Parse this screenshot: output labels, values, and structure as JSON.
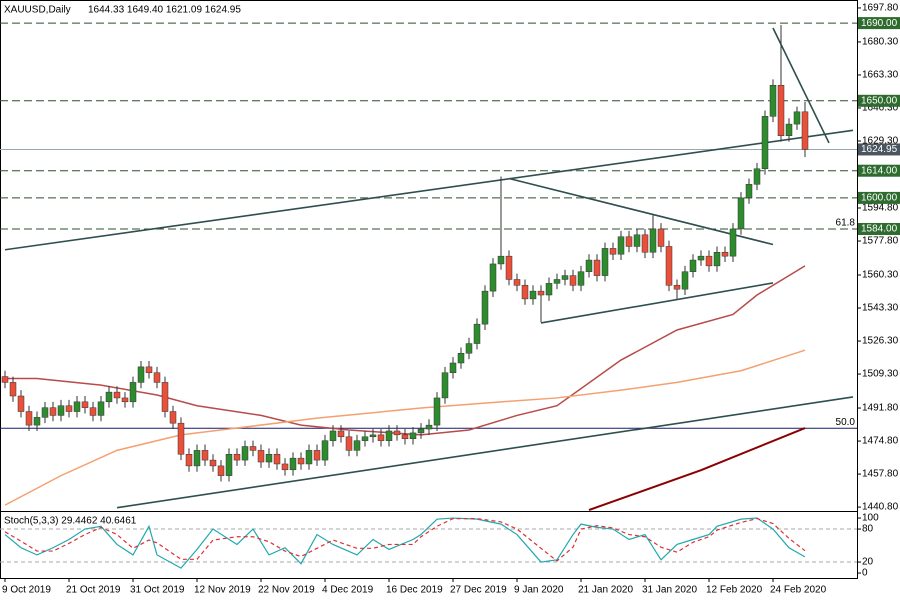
{
  "chart_data": [
    {
      "type": "candlestick",
      "title": "XAUUSD,Daily",
      "quote": "1644.33 1649.40 1621.09 1624.95",
      "up_color": "#2e8b2e",
      "down_color": "#e8503a",
      "wick_color": "#333333",
      "categories": [
        "9 Oct 2019",
        null,
        null,
        null,
        null,
        null,
        null,
        null,
        "21 Oct 2019",
        null,
        null,
        null,
        null,
        null,
        null,
        null,
        "31 Oct 2019",
        null,
        null,
        null,
        null,
        null,
        null,
        null,
        "12 Nov 2019",
        null,
        null,
        null,
        null,
        null,
        null,
        null,
        "22 Nov 2019",
        null,
        null,
        null,
        null,
        null,
        null,
        null,
        "4 Dec 2019",
        null,
        null,
        null,
        null,
        null,
        null,
        null,
        "16 Dec 2019",
        null,
        null,
        null,
        null,
        null,
        null,
        null,
        "27 Dec 2019",
        null,
        null,
        null,
        null,
        null,
        null,
        null,
        "9 Jan 2020",
        null,
        null,
        null,
        null,
        null,
        null,
        null,
        "21 Jan 2020",
        null,
        null,
        null,
        null,
        null,
        null,
        null,
        "31 Jan 2020",
        null,
        null,
        null,
        null,
        null,
        null,
        null,
        "12 Feb 2020",
        null,
        null,
        null,
        null,
        null,
        null,
        null,
        "24 Feb 2020",
        null,
        null,
        null,
        null
      ],
      "open": [
        1508,
        1505,
        1498,
        1490,
        1483,
        1487,
        1492,
        1488,
        1493,
        1490,
        1495,
        1492,
        1488,
        1495,
        1500,
        1497,
        1495,
        1505,
        1513,
        1510,
        1505,
        1490,
        1484,
        1468,
        1462,
        1470,
        1465,
        1462,
        1457,
        1468,
        1465,
        1472,
        1470,
        1464,
        1468,
        1463,
        1460,
        1466,
        1463,
        1470,
        1465,
        1475,
        1480,
        1477,
        1470,
        1475,
        1477,
        1478,
        1475,
        1480,
        1478,
        1476,
        1479,
        1481,
        1483,
        1497,
        1510,
        1515,
        1520,
        1525,
        1535,
        1552,
        1566,
        1570,
        1558,
        1555,
        1548,
        1552,
        1550,
        1556,
        1558,
        1560,
        1555,
        1562,
        1568,
        1560,
        1574,
        1571,
        1580,
        1575,
        1581,
        1572,
        1584,
        1575,
        1555,
        1553,
        1562,
        1568,
        1570,
        1565,
        1572,
        1570,
        1584,
        1600,
        1607,
        1615,
        1642,
        1658,
        1632,
        1638,
        1644.33
      ],
      "high": [
        1511,
        1508,
        1501,
        1493,
        1490,
        1495,
        1495,
        1496,
        1496,
        1498,
        1498,
        1495,
        1498,
        1503,
        1503,
        1500,
        1508,
        1516,
        1516,
        1513,
        1508,
        1493,
        1487,
        1471,
        1473,
        1473,
        1468,
        1465,
        1471,
        1471,
        1475,
        1475,
        1473,
        1471,
        1471,
        1466,
        1469,
        1469,
        1473,
        1473,
        1478,
        1483,
        1483,
        1480,
        1478,
        1480,
        1481,
        1481,
        1483,
        1483,
        1481,
        1482,
        1484,
        1486,
        1500,
        1513,
        1518,
        1523,
        1528,
        1538,
        1555,
        1569,
        1611,
        1573,
        1561,
        1558,
        1555,
        1555,
        1559,
        1561,
        1563,
        1563,
        1565,
        1571,
        1571,
        1577,
        1577,
        1583,
        1583,
        1584,
        1584,
        1591,
        1587,
        1578,
        1558,
        1565,
        1571,
        1573,
        1573,
        1575,
        1575,
        1587,
        1603,
        1610,
        1618,
        1645,
        1661,
        1689,
        1641,
        1647,
        1649.4
      ],
      "low": [
        1502,
        1495,
        1487,
        1480,
        1480,
        1484,
        1485,
        1485,
        1487,
        1487,
        1489,
        1485,
        1485,
        1492,
        1494,
        1492,
        1492,
        1502,
        1507,
        1502,
        1487,
        1481,
        1465,
        1459,
        1459,
        1462,
        1459,
        1454,
        1454,
        1462,
        1462,
        1467,
        1461,
        1461,
        1460,
        1457,
        1457,
        1460,
        1460,
        1462,
        1462,
        1472,
        1474,
        1467,
        1467,
        1472,
        1474,
        1472,
        1472,
        1475,
        1473,
        1473,
        1476,
        1478,
        1480,
        1494,
        1507,
        1512,
        1517,
        1522,
        1532,
        1549,
        1563,
        1555,
        1552,
        1545,
        1545,
        1536,
        1547,
        1553,
        1555,
        1552,
        1552,
        1559,
        1557,
        1557,
        1568,
        1568,
        1572,
        1572,
        1569,
        1569,
        1572,
        1552,
        1548,
        1550,
        1559,
        1565,
        1562,
        1562,
        1567,
        1567,
        1581,
        1597,
        1604,
        1612,
        1639,
        1629,
        1629,
        1635,
        1621.09
      ],
      "close": [
        1505,
        1498,
        1490,
        1483,
        1487,
        1492,
        1488,
        1493,
        1490,
        1495,
        1492,
        1488,
        1495,
        1500,
        1497,
        1495,
        1505,
        1513,
        1510,
        1505,
        1490,
        1484,
        1468,
        1462,
        1470,
        1465,
        1462,
        1457,
        1468,
        1465,
        1472,
        1470,
        1464,
        1468,
        1463,
        1460,
        1466,
        1463,
        1470,
        1465,
        1475,
        1480,
        1477,
        1470,
        1475,
        1477,
        1478,
        1475,
        1480,
        1478,
        1476,
        1479,
        1481,
        1483,
        1497,
        1510,
        1515,
        1520,
        1525,
        1535,
        1552,
        1566,
        1570,
        1558,
        1555,
        1548,
        1552,
        1550,
        1556,
        1558,
        1560,
        1555,
        1562,
        1568,
        1560,
        1574,
        1571,
        1580,
        1575,
        1581,
        1572,
        1584,
        1575,
        1555,
        1553,
        1562,
        1568,
        1570,
        1565,
        1572,
        1570,
        1584,
        1600,
        1607,
        1615,
        1642,
        1658,
        1632,
        1638,
        1644.33,
        1624.95
      ],
      "ylim": [
        1439.3,
        1701.9
      ],
      "yticks": [
        {
          "value": 1697.8,
          "label": "1697.80"
        },
        {
          "value": 1680.3,
          "label": "1680.30"
        },
        {
          "value": 1663.3,
          "label": "1663.30"
        },
        {
          "value": 1646.3,
          "label": "1646.30"
        },
        {
          "value": 1629.3,
          "label": "1629.30"
        },
        {
          "value": 1594.8,
          "label": "1594.80"
        },
        {
          "value": 1577.8,
          "label": "1577.80"
        },
        {
          "value": 1560.3,
          "label": "1560.30"
        },
        {
          "value": 1543.3,
          "label": "1543.30"
        },
        {
          "value": 1526.3,
          "label": "1526.30"
        },
        {
          "value": 1509.3,
          "label": "1509.30"
        },
        {
          "value": 1491.8,
          "label": "1491.80"
        },
        {
          "value": 1474.8,
          "label": "1474.80"
        },
        {
          "value": 1457.8,
          "label": "1457.80"
        },
        {
          "value": 1440.8,
          "label": "1440.80"
        }
      ],
      "overlays": [
        {
          "color": "#b84a4a",
          "x": [
            0,
            4,
            12,
            19,
            24,
            32,
            37,
            43,
            52,
            58,
            64,
            69,
            77,
            84,
            91,
            94,
            100
          ],
          "values": [
            1507,
            1507,
            1503.6,
            1498.5,
            1493,
            1488,
            1483,
            1480.5,
            1478,
            1480.5,
            1488,
            1493,
            1516.5,
            1532,
            1540,
            1550,
            1565
          ]
        },
        {
          "color": "#f4a070",
          "x": [
            0,
            7,
            14,
            22,
            29,
            39,
            52,
            62,
            69,
            77,
            84,
            92,
            100
          ],
          "values": [
            1441.8,
            1457,
            1470,
            1478,
            1481.5,
            1486.6,
            1491.8,
            1495,
            1497,
            1501,
            1505,
            1511,
            1521.6
          ]
        },
        {
          "color": "#8b0000",
          "x": [
            73,
            87,
            100
          ],
          "values": [
            1439.3,
            1459.8,
            1481.5
          ]
        }
      ],
      "trendline_color": "#2f4f4f",
      "trendlines": [
        {
          "x": [
            0,
            106
          ],
          "y": [
            1573.3,
            1634.8
          ]
        },
        {
          "x": [
            14,
            106
          ],
          "y": [
            1440.5,
            1497.5
          ]
        },
        {
          "x": [
            63,
            96
          ],
          "y": [
            1610,
            1576
          ]
        },
        {
          "x": [
            67,
            96
          ],
          "y": [
            1535.6,
            1556.2
          ]
        },
        {
          "x": [
            96,
            103
          ],
          "y": [
            1687.5,
            1628.3
          ]
        }
      ],
      "levels": [
        {
          "value": 1690,
          "label": "1690.00",
          "style": "dashed",
          "color": "#2e6b2e"
        },
        {
          "value": 1650,
          "label": "1650.00",
          "style": "dashed",
          "color": "#2e6b2e"
        },
        {
          "value": 1624.95,
          "label": "1624.95",
          "style": "solid",
          "color": "#4a5560"
        },
        {
          "value": 1614,
          "label": "1614.00",
          "style": "dashed",
          "color": "#2e6b2e"
        },
        {
          "value": 1600,
          "label": "1600.00",
          "style": "dashed",
          "color": "#2e6b2e"
        },
        {
          "value": 1584,
          "label": "1584.00",
          "style": "dashed",
          "color": "#2e6b2e"
        }
      ],
      "fib_levels": [
        {
          "value": 1584,
          "label": "61.8",
          "line": false
        },
        {
          "value": 1481.4,
          "label": "50.0",
          "line": true
        }
      ]
    },
    {
      "type": "line",
      "title": "Stoch(5,3,3) 29.4462 40.6461",
      "ylim": [
        -9,
        111
      ],
      "yticks": [
        0,
        20,
        80,
        100
      ],
      "levels": [
        20,
        80
      ],
      "x": [
        0,
        2,
        4,
        6,
        8,
        10,
        12,
        14,
        16,
        18,
        19,
        22,
        24,
        26,
        29,
        31,
        33,
        35,
        37,
        39,
        41,
        44,
        46,
        48,
        51,
        52,
        54,
        56,
        59,
        62,
        64,
        67,
        69,
        71,
        72,
        74,
        76,
        78,
        80,
        82,
        84,
        86,
        88,
        89,
        92,
        94,
        96,
        98,
        100
      ],
      "series": [
        {
          "color": "#20a8b0",
          "dashed": false,
          "values": [
            70,
            46,
            33,
            46,
            61,
            80,
            85,
            52,
            33,
            85,
            33,
            9,
            43,
            80,
            52,
            80,
            33,
            46,
            17,
            70,
            52,
            33,
            61,
            43,
            61,
            70,
            98,
            100,
            98,
            89,
            70,
            20,
            24,
            70,
            89,
            83,
            80,
            61,
            70,
            24,
            52,
            61,
            70,
            85,
            98,
            100,
            80,
            46,
            29.4462
          ]
        },
        {
          "color": "#e03030",
          "dashed": true,
          "values": [
            75,
            58,
            40,
            40,
            54,
            70,
            83,
            70,
            45,
            60,
            55,
            25,
            25,
            60,
            66,
            66,
            57,
            40,
            30,
            45,
            60,
            45,
            45,
            52,
            52,
            66,
            85,
            99,
            99,
            93,
            80,
            45,
            22,
            47,
            80,
            86,
            82,
            70,
            66,
            47,
            38,
            56,
            66,
            78,
            92,
            99,
            90,
            63,
            40.6461
          ]
        }
      ]
    }
  ]
}
